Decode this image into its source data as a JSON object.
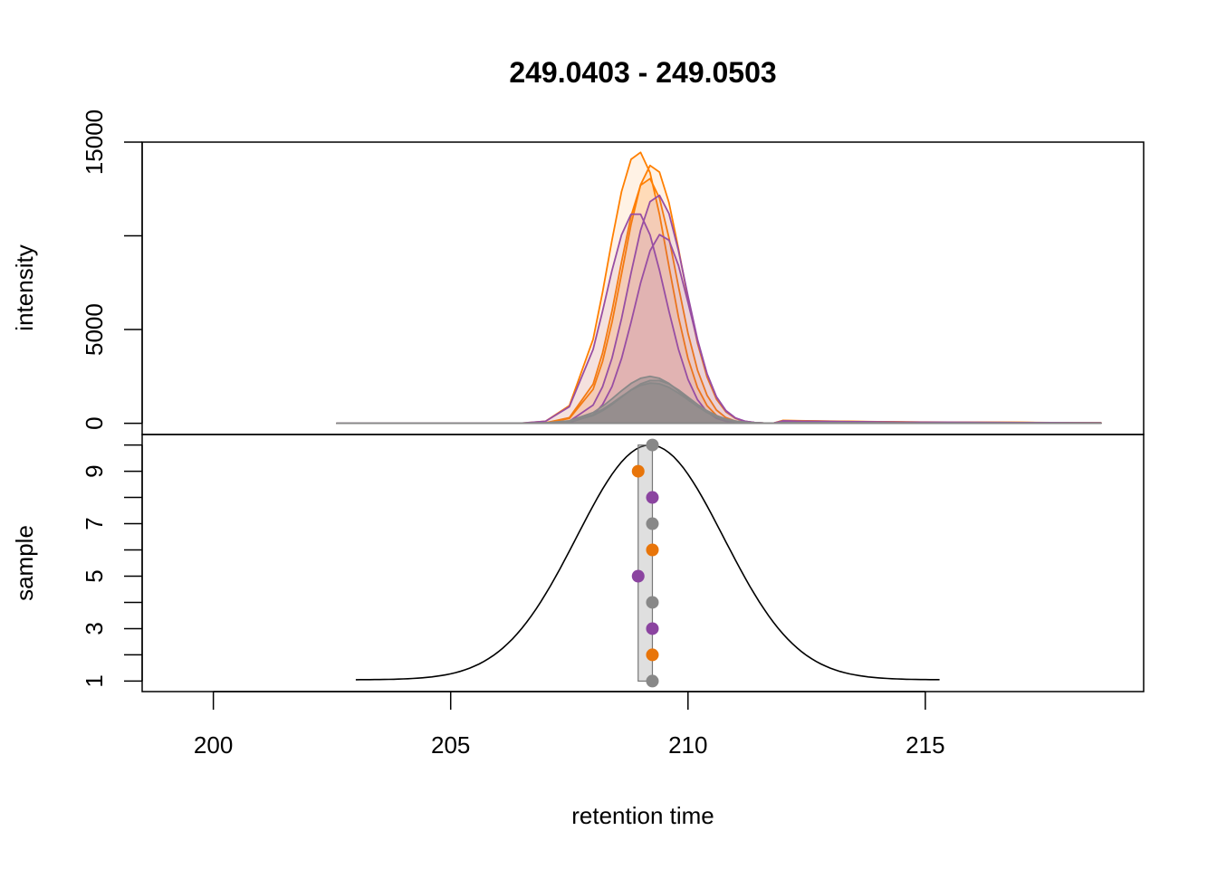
{
  "chart_data": [
    {
      "type": "area",
      "panel": "top",
      "title": "249.0403 - 249.0503",
      "ylabel": "intensity",
      "xlabel": "",
      "xlim": [
        198.5,
        219.6
      ],
      "ylim": [
        -600,
        15000
      ],
      "y_ticks": [
        "0",
        "5000",
        "15000"
      ],
      "y_minor_ticks": [
        0,
        5000,
        10000,
        15000
      ],
      "colors": {
        "orange": "#FF7F00",
        "purple": "#984EA3",
        "grey": "#888888"
      },
      "shoulder_x": [
        202.6,
        203.5,
        204.5,
        205.5,
        206.5,
        207.0,
        207.5,
        208.0
      ],
      "tail_x": [
        212.0,
        213.0,
        214.0,
        215.0,
        216.0,
        217.0,
        218.0,
        218.7
      ],
      "tail_y": [
        150,
        110,
        80,
        60,
        50,
        40,
        30,
        20
      ],
      "series": [
        {
          "group": "orange",
          "apex_rt": 208.95,
          "apex": 14500,
          "sd": 0.62
        },
        {
          "group": "orange",
          "apex_rt": 209.25,
          "apex": 13800,
          "sd": 0.62
        },
        {
          "group": "orange",
          "apex_rt": 209.15,
          "apex": 13100,
          "sd": 0.6
        },
        {
          "group": "purple",
          "apex_rt": 209.35,
          "apex": 12200,
          "sd": 0.6
        },
        {
          "group": "purple",
          "apex_rt": 208.9,
          "apex": 11300,
          "sd": 0.62
        },
        {
          "group": "purple",
          "apex_rt": 209.45,
          "apex": 10100,
          "sd": 0.58
        },
        {
          "group": "grey",
          "apex_rt": 209.2,
          "apex": 2500,
          "sd": 0.7
        },
        {
          "group": "grey",
          "apex_rt": 209.3,
          "apex": 2300,
          "sd": 0.7
        },
        {
          "group": "grey",
          "apex_rt": 209.25,
          "apex": 2150,
          "sd": 0.72
        }
      ]
    },
    {
      "type": "scatter",
      "panel": "bottom",
      "ylabel": "sample",
      "xlabel": "retention time",
      "xlim": [
        198.5,
        219.6
      ],
      "ylim": [
        0.6,
        10.4
      ],
      "x_ticks": [
        "200",
        "205",
        "210",
        "215"
      ],
      "y_ticks": [
        "1",
        "3",
        "5",
        "7",
        "9"
      ],
      "y_minor_ticks": [
        1,
        2,
        3,
        4,
        5,
        6,
        7,
        8,
        9,
        10
      ],
      "points": [
        {
          "sample": 1,
          "rt": 209.25,
          "color": "#888888"
        },
        {
          "sample": 2,
          "rt": 209.25,
          "color": "#E8750A"
        },
        {
          "sample": 3,
          "rt": 209.25,
          "color": "#8B44A0"
        },
        {
          "sample": 4,
          "rt": 209.25,
          "color": "#888888"
        },
        {
          "sample": 5,
          "rt": 208.95,
          "color": "#8B44A0"
        },
        {
          "sample": 6,
          "rt": 209.25,
          "color": "#E8750A"
        },
        {
          "sample": 7,
          "rt": 209.25,
          "color": "#888888"
        },
        {
          "sample": 8,
          "rt": 209.25,
          "color": "#8B44A0"
        },
        {
          "sample": 9,
          "rt": 208.95,
          "color": "#E8750A"
        },
        {
          "sample": 10,
          "rt": 209.25,
          "color": "#888888"
        }
      ],
      "range_band": {
        "rt_min": 208.95,
        "rt_max": 209.25,
        "sample_min": 1,
        "sample_max": 10
      },
      "density_curve": {
        "mean": 209.2,
        "sd": 1.55,
        "rt_from": 203.0,
        "rt_to": 215.3,
        "base_sample": 1.05,
        "peak_sample": 10.0
      }
    }
  ]
}
